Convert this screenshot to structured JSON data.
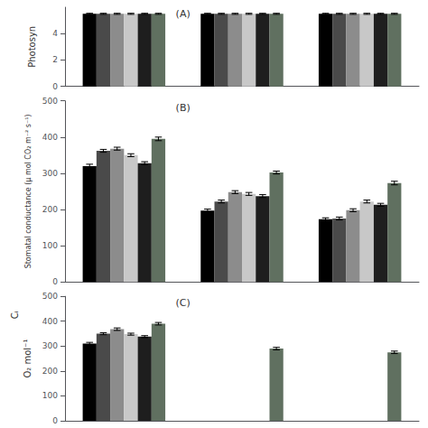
{
  "chart_data": [
    {
      "type": "bar",
      "title": "(A)",
      "ylabel": "Photosyn",
      "categories": [
        null,
        null,
        null
      ],
      "series": [
        {
          "color": "#000000",
          "values": [
            5.5,
            5.5,
            5.5
          ],
          "errors": [
            0.04,
            0.04,
            0.04
          ]
        },
        {
          "color": "#4a4a4a",
          "values": [
            5.5,
            5.5,
            5.5
          ],
          "errors": [
            0.04,
            0.04,
            0.04
          ]
        },
        {
          "color": "#8c8c8c",
          "values": [
            5.5,
            5.5,
            5.5
          ],
          "errors": [
            0.04,
            0.04,
            0.04
          ]
        },
        {
          "color": "#c8c8c8",
          "values": [
            5.5,
            5.5,
            5.5
          ],
          "errors": [
            0.04,
            0.04,
            0.04
          ]
        },
        {
          "color": "#1e1e1e",
          "values": [
            5.5,
            5.5,
            5.5
          ],
          "errors": [
            0.04,
            0.04,
            0.04
          ]
        },
        {
          "color": "#607060",
          "values": [
            5.5,
            5.5,
            5.5
          ],
          "errors": [
            0.04,
            0.04,
            0.04
          ]
        }
      ],
      "ylim": [
        0,
        6
      ],
      "yticks": [
        0,
        2,
        4
      ],
      "grid": false,
      "tick_labels": "y"
    },
    {
      "type": "bar",
      "title": "(B)",
      "ylabel": "Stomatal conductance (μ mol CO₂ m⁻² s⁻¹)",
      "categories": [
        null,
        null,
        null
      ],
      "series": [
        {
          "color": "#000000",
          "values": [
            320,
            197,
            173
          ],
          "errors": [
            5,
            4,
            4
          ]
        },
        {
          "color": "#4a4a4a",
          "values": [
            362,
            222,
            175
          ],
          "errors": [
            4,
            4,
            4
          ]
        },
        {
          "color": "#8c8c8c",
          "values": [
            368,
            248,
            198
          ],
          "errors": [
            4,
            4,
            4
          ]
        },
        {
          "color": "#c8c8c8",
          "values": [
            350,
            243,
            222
          ],
          "errors": [
            4,
            4,
            4
          ]
        },
        {
          "color": "#1e1e1e",
          "values": [
            328,
            237,
            213
          ],
          "errors": [
            4,
            4,
            4
          ]
        },
        {
          "color": "#607060",
          "values": [
            395,
            302,
            273
          ],
          "errors": [
            5,
            4,
            5
          ]
        }
      ],
      "ylim": [
        0,
        500
      ],
      "yticks": [
        0,
        100,
        200,
        300,
        400,
        500
      ],
      "grid": false,
      "tick_labels": "y"
    },
    {
      "type": "bar",
      "title": "(C)",
      "ylabel": "O₂ mol⁻¹",
      "annotations": [
        "Cᵢ"
      ],
      "categories": [
        null,
        null,
        null
      ],
      "series": [
        {
          "color": "#000000",
          "values": [
            310,
            0,
            0
          ],
          "errors": [
            5,
            0,
            0
          ]
        },
        {
          "color": "#4a4a4a",
          "values": [
            350,
            0,
            0
          ],
          "errors": [
            4,
            0,
            0
          ]
        },
        {
          "color": "#8c8c8c",
          "values": [
            368,
            0,
            0
          ],
          "errors": [
            5,
            0,
            0
          ]
        },
        {
          "color": "#c8c8c8",
          "values": [
            348,
            0,
            0
          ],
          "errors": [
            4,
            0,
            0
          ]
        },
        {
          "color": "#1e1e1e",
          "values": [
            338,
            0,
            0
          ],
          "errors": [
            4,
            0,
            0
          ]
        },
        {
          "color": "#607060",
          "values": [
            390,
            290,
            275
          ],
          "errors": [
            5,
            5,
            5
          ]
        }
      ],
      "ylim": [
        0,
        500
      ],
      "yticks": [
        0,
        100,
        200,
        300,
        400,
        500
      ],
      "grid": false,
      "tick_labels": "y"
    }
  ]
}
